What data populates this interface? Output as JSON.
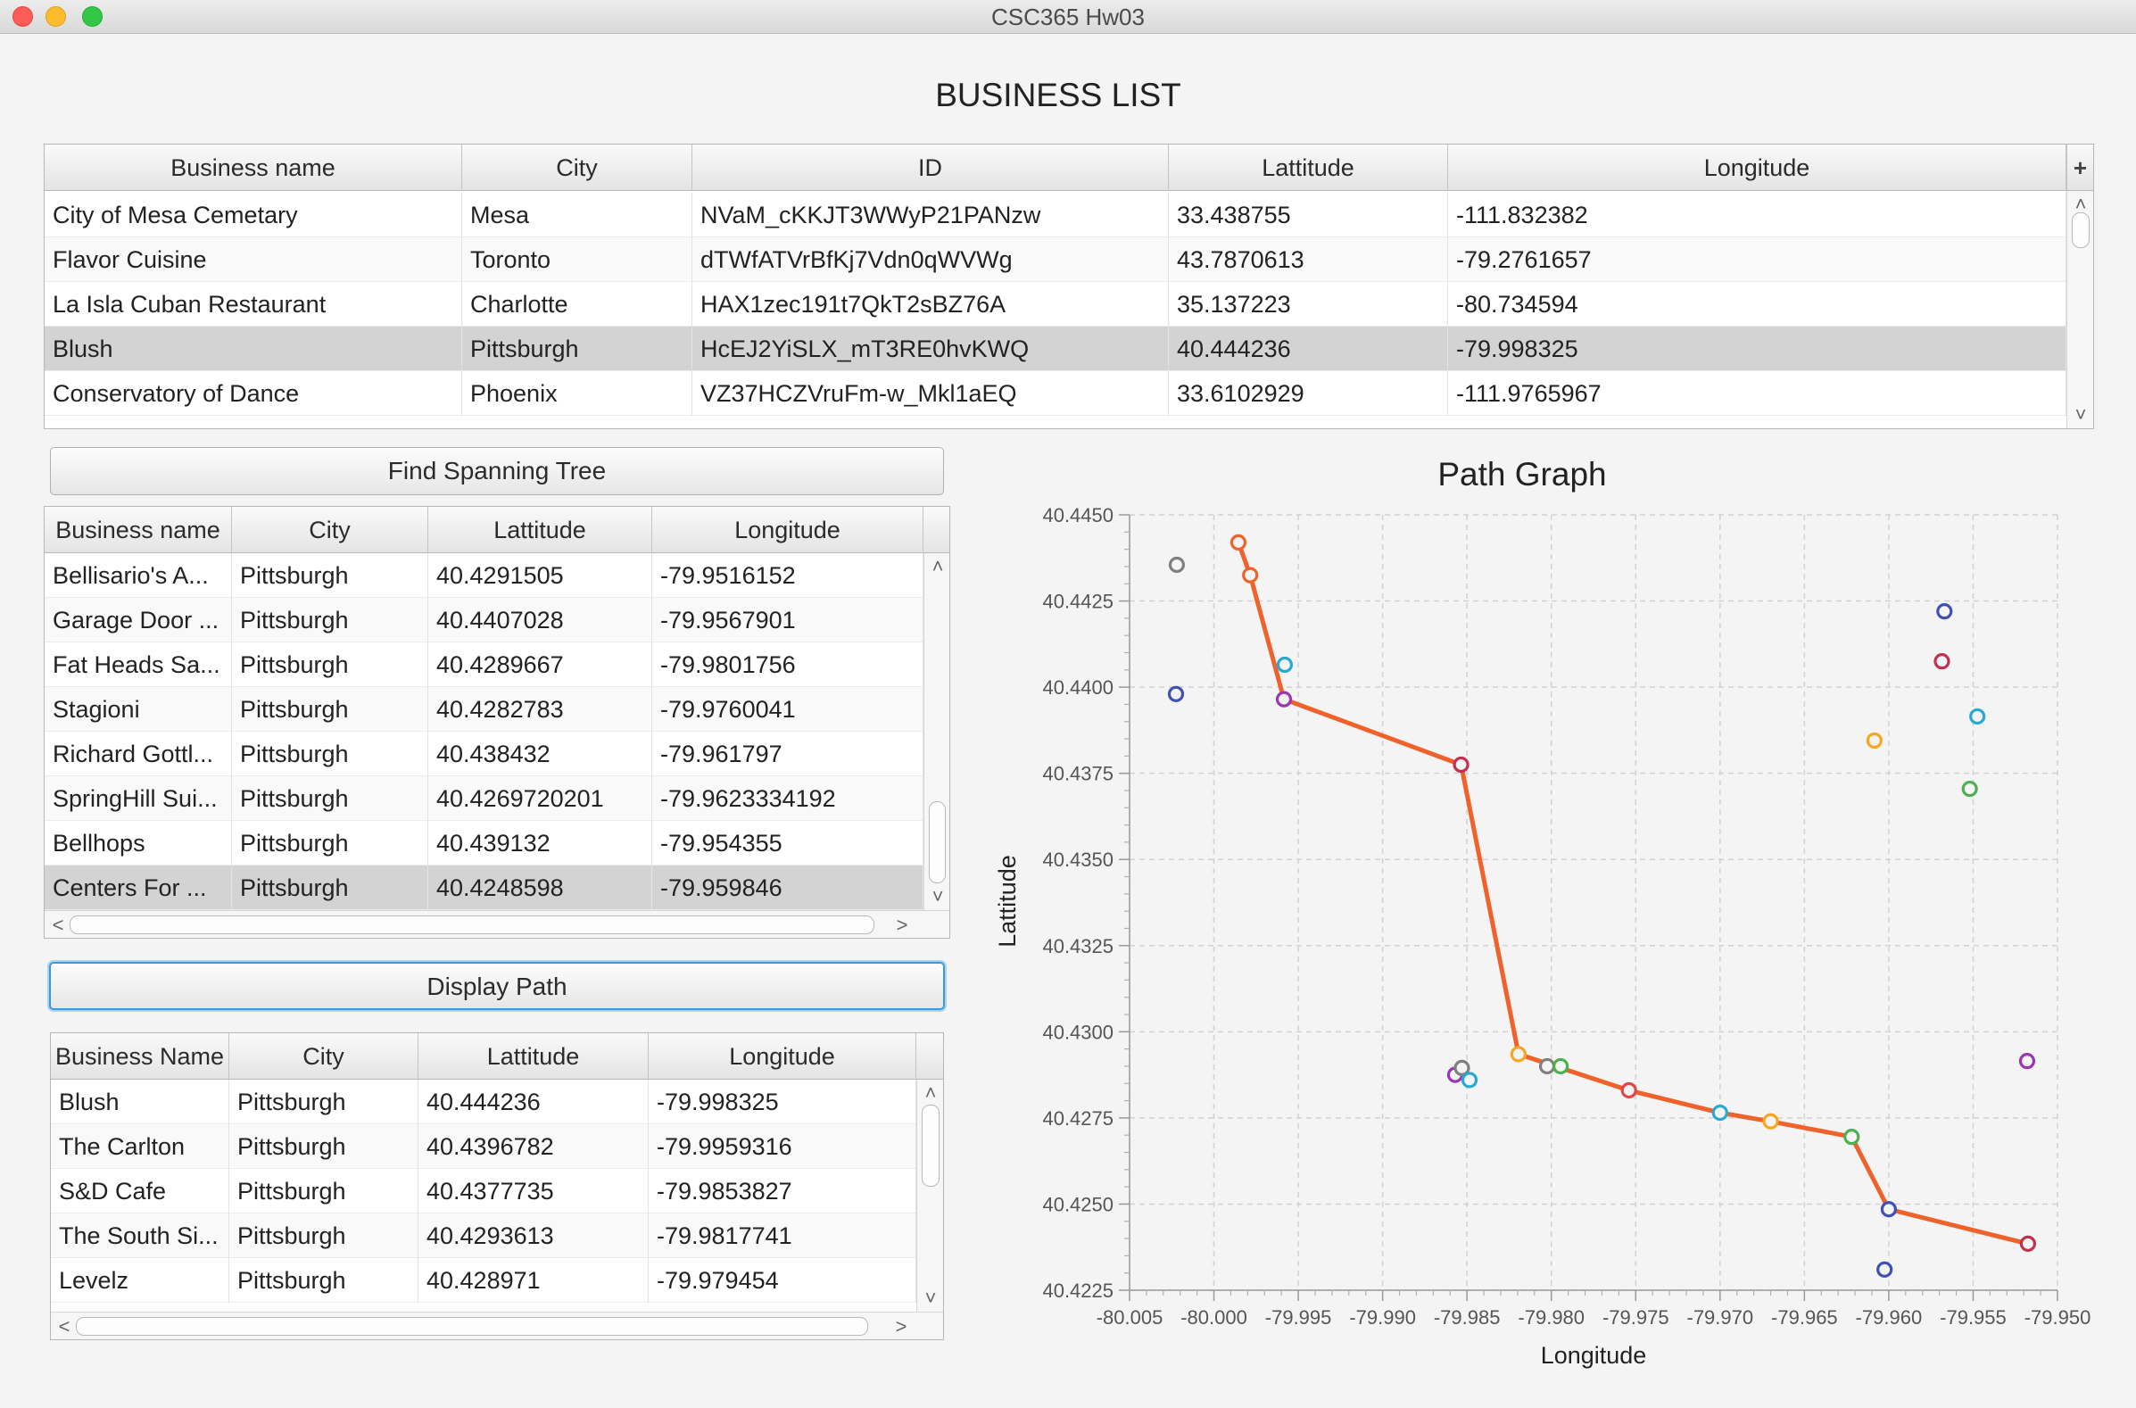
{
  "window": {
    "title": "CSC365 Hw03"
  },
  "business_list": {
    "title": "BUSINESS LIST",
    "corner_icon": "plus-icon",
    "columns": [
      "Business name",
      "City",
      "ID",
      "Lattitude",
      "Longitude"
    ],
    "rows": [
      [
        "City of Mesa Cemetary",
        "Mesa",
        "NVaM_cKKJT3WWyP21PANzw",
        "33.438755",
        "-111.832382"
      ],
      [
        "Flavor Cuisine",
        "Toronto",
        "dTWfATVrBfKj7Vdn0qWVWg",
        "43.7870613",
        "-79.2761657"
      ],
      [
        "La Isla Cuban Restaurant",
        "Charlotte",
        "HAX1zec191t7QkT2sBZ76A",
        "35.137223",
        "-80.734594"
      ],
      [
        "Blush",
        "Pittsburgh",
        "HcEJ2YiSLX_mT3RE0hvKWQ",
        "40.444236",
        "-79.998325"
      ],
      [
        "Conservatory of Dance",
        "Phoenix",
        "VZ37HCZVruFm-w_Mkl1aEQ",
        "33.6102929",
        "-111.9765967"
      ]
    ],
    "selected_row": 3
  },
  "spanning_tree": {
    "button_label": "Find Spanning Tree",
    "columns": [
      "Business name",
      "City",
      "Lattitude",
      "Longitude"
    ],
    "rows": [
      [
        "Bellisario's A...",
        "Pittsburgh",
        "40.4291505",
        "-79.9516152"
      ],
      [
        "Garage Door ...",
        "Pittsburgh",
        "40.4407028",
        "-79.9567901"
      ],
      [
        "Fat Heads Sa...",
        "Pittsburgh",
        "40.4289667",
        "-79.9801756"
      ],
      [
        "Stagioni",
        "Pittsburgh",
        "40.4282783",
        "-79.9760041"
      ],
      [
        "Richard Gottl...",
        "Pittsburgh",
        "40.438432",
        "-79.961797"
      ],
      [
        "SpringHill Sui...",
        "Pittsburgh",
        "40.4269720201",
        "-79.9623334192"
      ],
      [
        "Bellhops",
        "Pittsburgh",
        "40.439132",
        "-79.954355"
      ],
      [
        "Centers For ...",
        "Pittsburgh",
        "40.4248598",
        "-79.959846"
      ]
    ],
    "selected_row": 7
  },
  "path": {
    "button_label": "Display Path",
    "columns": [
      "Business Name",
      "City",
      "Lattitude",
      "Longitude"
    ],
    "rows": [
      [
        "Blush",
        "Pittsburgh",
        "40.444236",
        "-79.998325"
      ],
      [
        "The Carlton",
        "Pittsburgh",
        "40.4396782",
        "-79.9959316"
      ],
      [
        "S&D Cafe",
        "Pittsburgh",
        "40.4377735",
        "-79.9853827"
      ],
      [
        "The South Si...",
        "Pittsburgh",
        "40.4293613",
        "-79.9817741"
      ],
      [
        "Levelz",
        "Pittsburgh",
        "40.428971",
        "-79.979454"
      ]
    ]
  },
  "chart_data": {
    "type": "scatter",
    "title": "Path Graph",
    "xlabel": "Longitude",
    "ylabel": "Lattitude",
    "xlim": [
      -80.005,
      -79.95
    ],
    "ylim": [
      40.4225,
      40.445
    ],
    "xticks": [
      "-80.005",
      "-80.000",
      "-79.995",
      "-79.990",
      "-79.985",
      "-79.980",
      "-79.975",
      "-79.970",
      "-79.965",
      "-79.960",
      "-79.955",
      "-79.950"
    ],
    "yticks": [
      "40.4225",
      "40.4250",
      "40.4275",
      "40.4300",
      "40.4325",
      "40.4350",
      "40.4375",
      "40.4400",
      "40.4425",
      "40.4450"
    ],
    "grid": true,
    "path_color": "#f0622c",
    "path": [
      {
        "x": -79.99855,
        "y": 40.4442
      },
      {
        "x": -79.99785,
        "y": 40.44325
      },
      {
        "x": -79.99585,
        "y": 40.43965
      },
      {
        "x": -79.98535,
        "y": 40.43775
      },
      {
        "x": -79.98195,
        "y": 40.42935
      },
      {
        "x": -79.9754,
        "y": 40.4283
      },
      {
        "x": -79.97,
        "y": 40.42765
      },
      {
        "x": -79.967,
        "y": 40.4274
      },
      {
        "x": -79.9622,
        "y": 40.42695
      },
      {
        "x": -79.96,
        "y": 40.42485
      },
      {
        "x": -79.95175,
        "y": 40.42385
      }
    ],
    "points": [
      {
        "x": -80.0022,
        "y": 40.44355,
        "color": "#7f7f7f"
      },
      {
        "x": -80.00225,
        "y": 40.4398,
        "color": "#3f51b5"
      },
      {
        "x": -79.99855,
        "y": 40.4442,
        "color": "#f0622c"
      },
      {
        "x": -79.99785,
        "y": 40.44325,
        "color": "#f0622c"
      },
      {
        "x": -79.9958,
        "y": 40.44065,
        "color": "#29a9d1"
      },
      {
        "x": -79.99585,
        "y": 40.43965,
        "color": "#9c35b5"
      },
      {
        "x": -79.98535,
        "y": 40.43775,
        "color": "#c2304f"
      },
      {
        "x": -79.9857,
        "y": 40.42875,
        "color": "#9c35b5"
      },
      {
        "x": -79.9853,
        "y": 40.42895,
        "color": "#7f7f7f"
      },
      {
        "x": -79.98485,
        "y": 40.4286,
        "color": "#29a9d1"
      },
      {
        "x": -79.98195,
        "y": 40.42935,
        "color": "#f5a623"
      },
      {
        "x": -79.98025,
        "y": 40.429,
        "color": "#7f7f7f"
      },
      {
        "x": -79.97945,
        "y": 40.429,
        "color": "#4caf50"
      },
      {
        "x": -79.9754,
        "y": 40.4283,
        "color": "#e04848"
      },
      {
        "x": -79.97,
        "y": 40.42765,
        "color": "#29a9d1"
      },
      {
        "x": -79.967,
        "y": 40.4274,
        "color": "#f5a623"
      },
      {
        "x": -79.9622,
        "y": 40.42695,
        "color": "#4caf50"
      },
      {
        "x": -79.96,
        "y": 40.42485,
        "color": "#3f51b5"
      },
      {
        "x": -79.96025,
        "y": 40.4231,
        "color": "#3f51b5"
      },
      {
        "x": -79.95175,
        "y": 40.42385,
        "color": "#c2304f"
      },
      {
        "x": -79.96085,
        "y": 40.43845,
        "color": "#f5a623"
      },
      {
        "x": -79.9567,
        "y": 40.4422,
        "color": "#3f51b5"
      },
      {
        "x": -79.95685,
        "y": 40.44075,
        "color": "#c2304f"
      },
      {
        "x": -79.95475,
        "y": 40.43915,
        "color": "#29a9d1"
      },
      {
        "x": -79.9552,
        "y": 40.43705,
        "color": "#4caf50"
      },
      {
        "x": -79.9518,
        "y": 40.42915,
        "color": "#9c35b5"
      }
    ]
  }
}
